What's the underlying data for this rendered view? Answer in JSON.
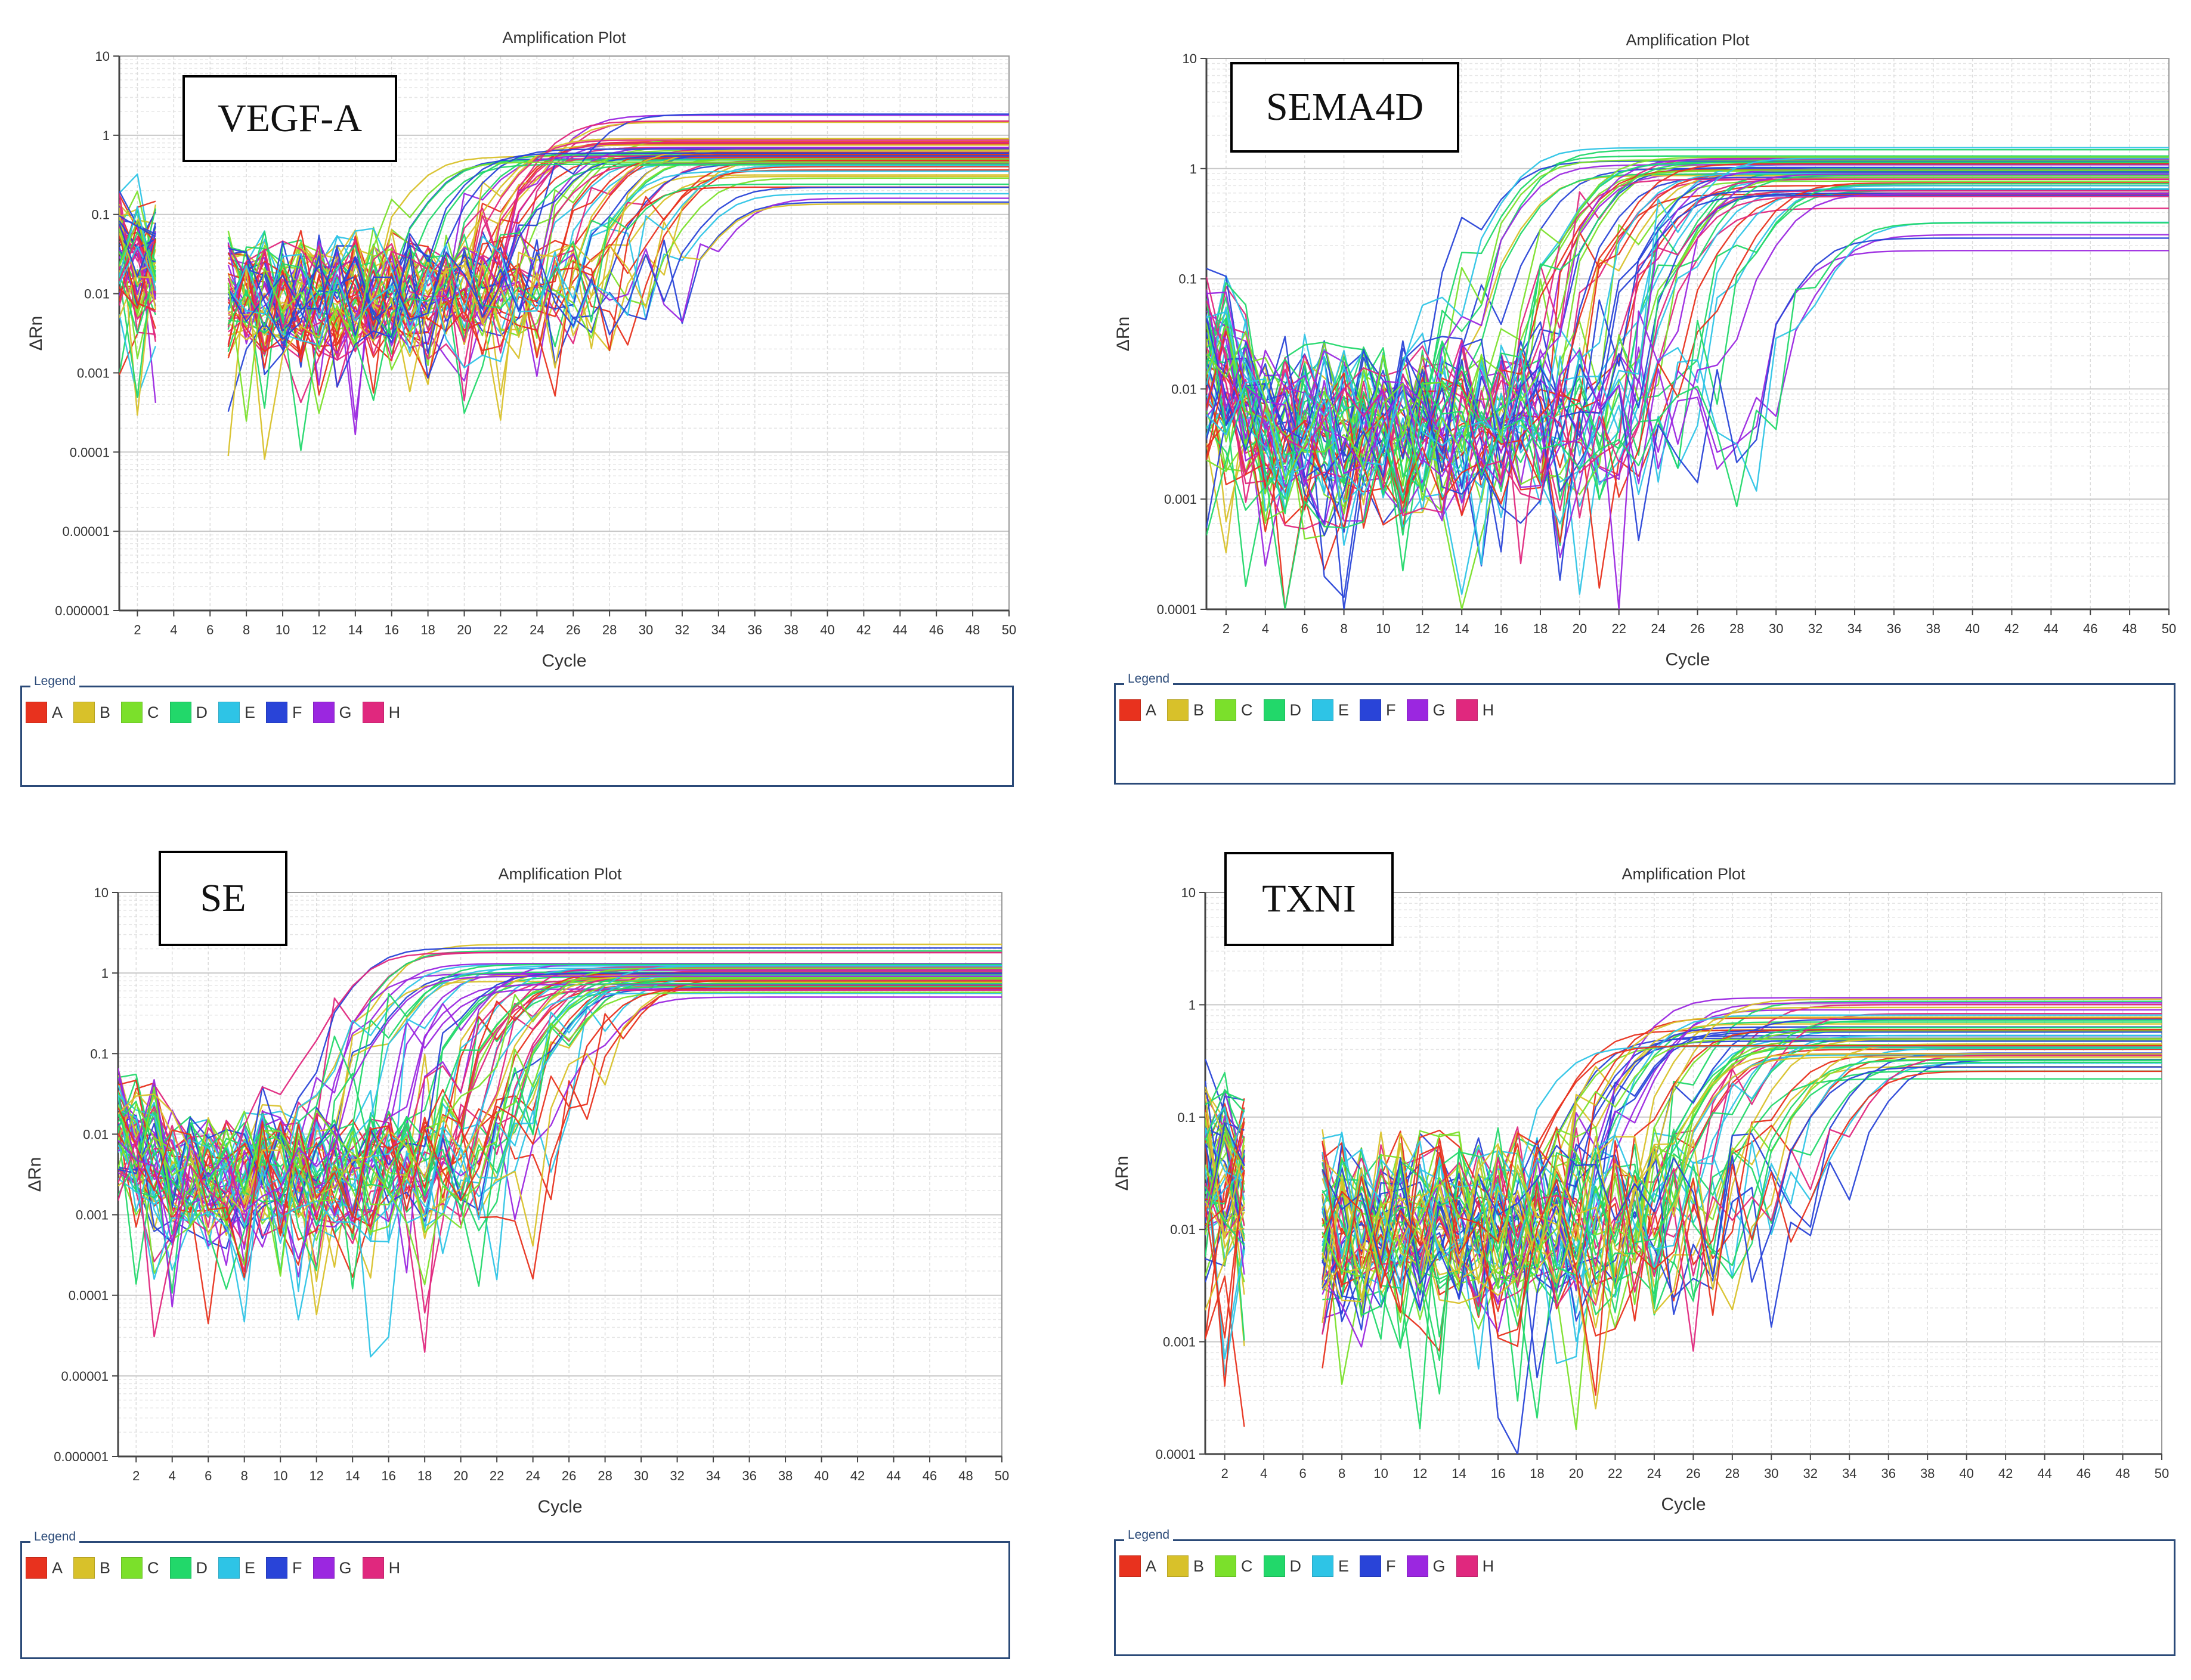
{
  "chart_data": [
    {
      "type": "line",
      "title": "Amplification Plot",
      "gene_label": "VEGF-A",
      "xlabel": "Cycle",
      "ylabel": "ΔRn",
      "y_scale": "log",
      "xlim": [
        1,
        50
      ],
      "ylim": [
        1e-06,
        10
      ],
      "x_ticks": [
        2,
        4,
        6,
        8,
        10,
        12,
        14,
        16,
        18,
        20,
        22,
        24,
        26,
        28,
        30,
        32,
        34,
        36,
        38,
        40,
        42,
        44,
        46,
        48,
        50
      ],
      "y_ticks": [
        "0.000001",
        "0.00001",
        "0.0001",
        "0.001",
        "0.01",
        "0.1",
        "1",
        "10"
      ],
      "grid": true,
      "gap_cycles": [
        4,
        6
      ],
      "noise_floor": 0.01,
      "representative_curves": [
        {
          "group": "F",
          "ct": 19,
          "plateau": 0.5
        },
        {
          "group": "D",
          "ct": 22,
          "plateau": 0.6
        },
        {
          "group": "B",
          "ct": 24,
          "plateau": 0.55
        },
        {
          "group": "G",
          "ct": 25,
          "plateau": 0.8
        },
        {
          "group": "H",
          "ct": 26,
          "plateau": 1.5
        },
        {
          "group": "C",
          "ct": 27,
          "plateau": 0.7
        },
        {
          "group": "E",
          "ct": 28,
          "plateau": 0.45
        },
        {
          "group": "A",
          "ct": 29,
          "plateau": 0.6
        },
        {
          "group": "D",
          "ct": 30,
          "plateau": 0.5
        },
        {
          "group": "B",
          "ct": 31,
          "plateau": 0.3
        },
        {
          "group": "A",
          "ct": 33,
          "plateau": 0.4
        },
        {
          "group": "E",
          "ct": 34,
          "plateau": 0.18
        }
      ]
    },
    {
      "type": "line",
      "title": "Amplification Plot",
      "gene_label": "SEMA4D",
      "xlabel": "Cycle",
      "ylabel": "ΔRn",
      "y_scale": "log",
      "xlim": [
        1,
        50
      ],
      "ylim": [
        0.0001,
        10
      ],
      "x_ticks": [
        2,
        4,
        6,
        8,
        10,
        12,
        14,
        16,
        18,
        20,
        22,
        24,
        26,
        28,
        30,
        32,
        34,
        36,
        38,
        40,
        42,
        44,
        46,
        48,
        50
      ],
      "y_ticks": [
        "0.0001",
        "0.001",
        "0.01",
        "0.1",
        "1",
        "10"
      ],
      "grid": true,
      "gap_cycles": [],
      "noise_floor": 0.004,
      "representative_curves": [
        {
          "group": "D",
          "ct": 17,
          "plateau": 1.3
        },
        {
          "group": "F",
          "ct": 19,
          "plateau": 1.0
        },
        {
          "group": "G",
          "ct": 21,
          "plateau": 0.9
        },
        {
          "group": "C",
          "ct": 22,
          "plateau": 1.1
        },
        {
          "group": "H",
          "ct": 23,
          "plateau": 0.8
        },
        {
          "group": "B",
          "ct": 24,
          "plateau": 0.9
        },
        {
          "group": "A",
          "ct": 25,
          "plateau": 0.7
        },
        {
          "group": "E",
          "ct": 26,
          "plateau": 0.8
        },
        {
          "group": "D",
          "ct": 27,
          "plateau": 1.0
        },
        {
          "group": "A",
          "ct": 28,
          "plateau": 0.6
        },
        {
          "group": "E",
          "ct": 30,
          "plateau": 0.7
        },
        {
          "group": "G",
          "ct": 33,
          "plateau": 0.25
        }
      ]
    },
    {
      "type": "line",
      "title": "Amplification Plot",
      "gene_label": "SE",
      "xlabel": "Cycle",
      "ylabel": "ΔRn",
      "y_scale": "log",
      "xlim": [
        1,
        50
      ],
      "ylim": [
        1e-06,
        10
      ],
      "x_ticks": [
        2,
        4,
        6,
        8,
        10,
        12,
        14,
        16,
        18,
        20,
        22,
        24,
        26,
        28,
        30,
        32,
        34,
        36,
        38,
        40,
        42,
        44,
        46,
        48,
        50
      ],
      "y_ticks": [
        "0.000001",
        "0.00001",
        "0.0001",
        "0.001",
        "0.01",
        "0.1",
        "1",
        "10"
      ],
      "grid": true,
      "gap_cycles": [],
      "noise_floor": 0.003,
      "representative_curves": [
        {
          "group": "H",
          "ct": 16,
          "plateau": 1.8
        },
        {
          "group": "F",
          "ct": 17,
          "plateau": 1.0
        },
        {
          "group": "G",
          "ct": 19,
          "plateau": 1.0
        },
        {
          "group": "D",
          "ct": 21,
          "plateau": 0.9
        },
        {
          "group": "B",
          "ct": 22,
          "plateau": 1.1
        },
        {
          "group": "C",
          "ct": 23,
          "plateau": 0.8
        },
        {
          "group": "E",
          "ct": 24,
          "plateau": 0.9
        },
        {
          "group": "A",
          "ct": 25,
          "plateau": 0.7
        },
        {
          "group": "H",
          "ct": 26,
          "plateau": 1.0
        },
        {
          "group": "D",
          "ct": 27,
          "plateau": 0.8
        },
        {
          "group": "B",
          "ct": 28,
          "plateau": 0.9
        },
        {
          "group": "A",
          "ct": 30,
          "plateau": 0.7
        }
      ]
    },
    {
      "type": "line",
      "title": "Amplification Plot",
      "gene_label": "TXNI",
      "xlabel": "Cycle",
      "ylabel": "ΔRn",
      "y_scale": "log",
      "xlim": [
        1,
        50
      ],
      "ylim": [
        0.0001,
        10
      ],
      "x_ticks": [
        2,
        4,
        6,
        8,
        10,
        12,
        14,
        16,
        18,
        20,
        22,
        24,
        26,
        28,
        30,
        32,
        34,
        36,
        38,
        40,
        42,
        44,
        46,
        48,
        50
      ],
      "y_ticks": [
        "0.0001",
        "0.001",
        "0.01",
        "0.1",
        "1",
        "10"
      ],
      "grid": true,
      "gap_cycles": [
        4,
        6
      ],
      "noise_floor": 0.01,
      "representative_curves": [
        {
          "group": "F",
          "ct": 21,
          "plateau": 0.5
        },
        {
          "group": "B",
          "ct": 23,
          "plateau": 0.6
        },
        {
          "group": "D",
          "ct": 24,
          "plateau": 0.7
        },
        {
          "group": "G",
          "ct": 25,
          "plateau": 0.9
        },
        {
          "group": "C",
          "ct": 26,
          "plateau": 0.6
        },
        {
          "group": "E",
          "ct": 27,
          "plateau": 0.5
        },
        {
          "group": "A",
          "ct": 28,
          "plateau": 0.4
        },
        {
          "group": "H",
          "ct": 29,
          "plateau": 1.0
        },
        {
          "group": "D",
          "ct": 30,
          "plateau": 0.5
        },
        {
          "group": "B",
          "ct": 31,
          "plateau": 0.28
        },
        {
          "group": "A",
          "ct": 33,
          "plateau": 0.35
        },
        {
          "group": "E",
          "ct": 35,
          "plateau": 0.3
        }
      ]
    }
  ],
  "legend": {
    "title": "Legend",
    "items": [
      {
        "label": "A",
        "color": "#e8321e"
      },
      {
        "label": "B",
        "color": "#d8c12a"
      },
      {
        "label": "C",
        "color": "#7be02b"
      },
      {
        "label": "D",
        "color": "#22d86a"
      },
      {
        "label": "E",
        "color": "#2ec4e6"
      },
      {
        "label": "F",
        "color": "#2944d8"
      },
      {
        "label": "G",
        "color": "#9b27e0"
      },
      {
        "label": "H",
        "color": "#e0287e"
      }
    ]
  }
}
